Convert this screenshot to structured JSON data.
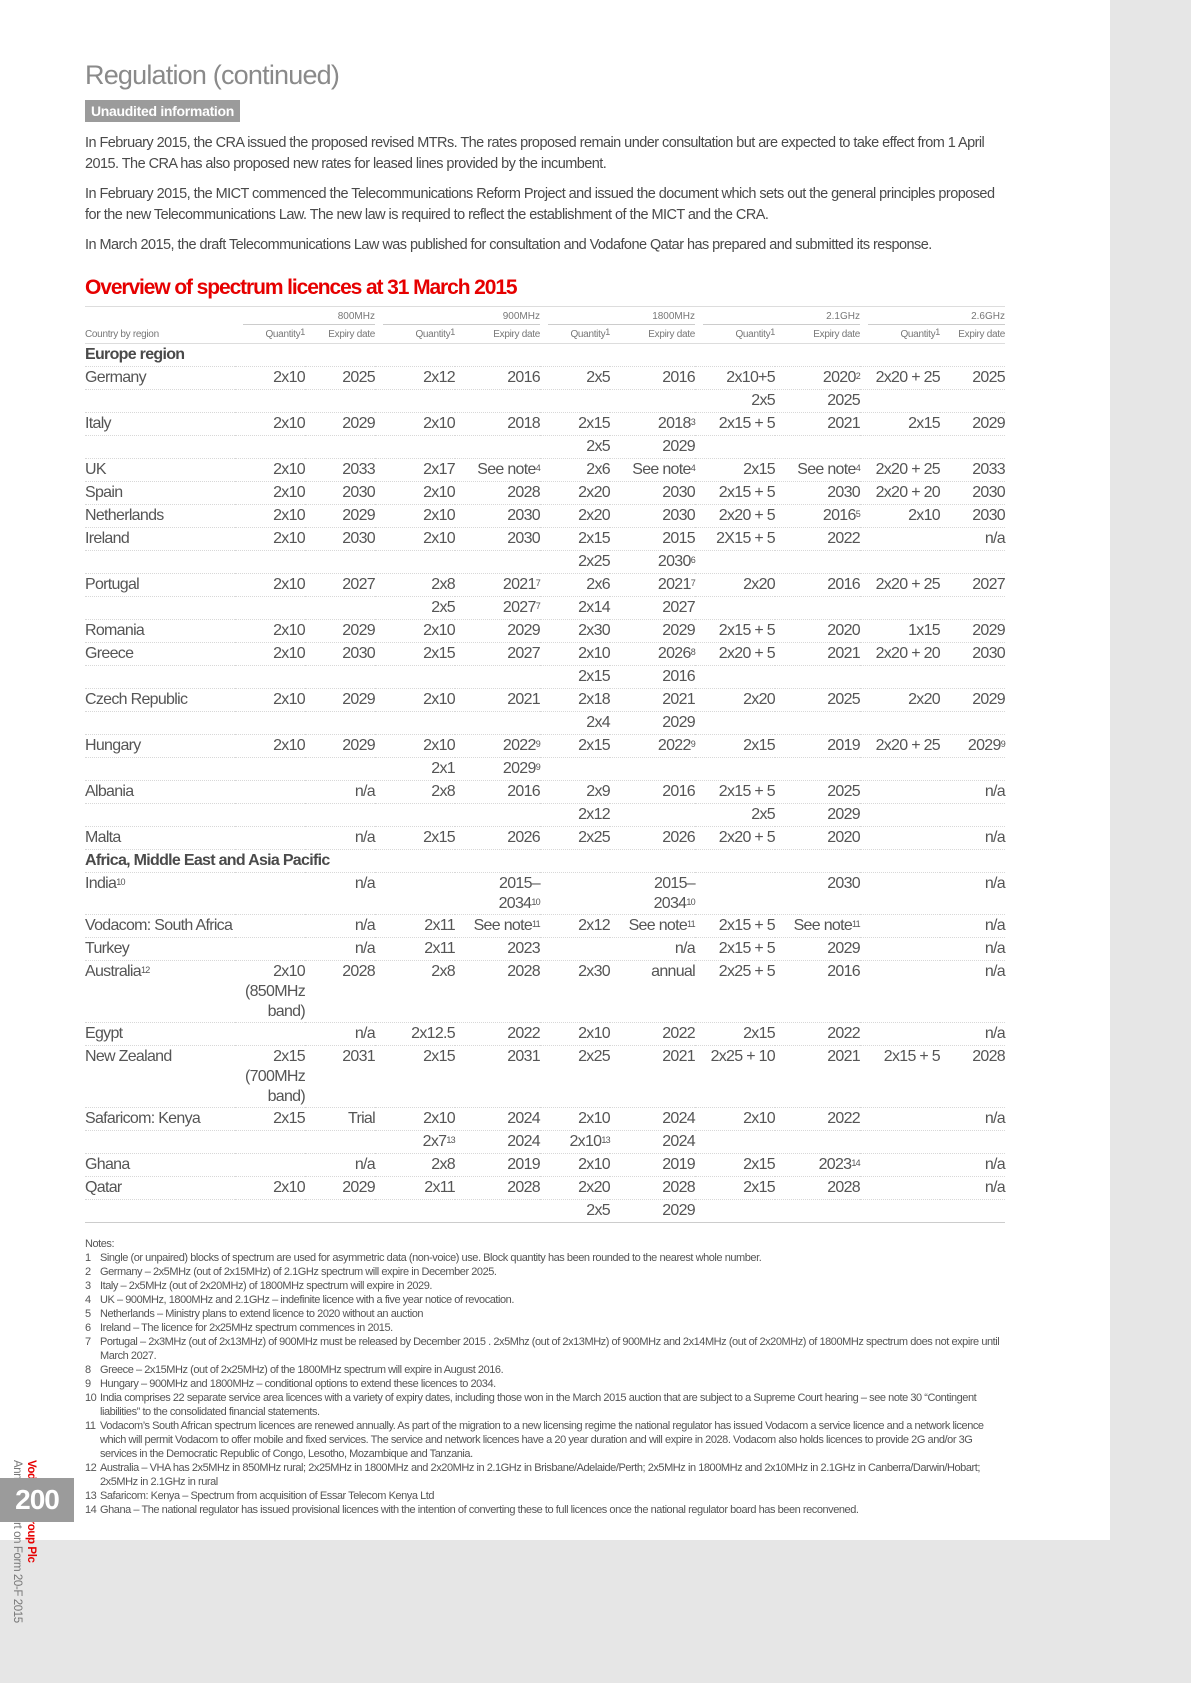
{
  "header": {
    "title": "Regulation (continued)",
    "badge": "Unaudited information"
  },
  "paragraphs": [
    "In February 2015, the CRA issued the proposed revised MTRs. The rates proposed remain under consultation but are expected to take effect from 1 April 2015. The CRA has also proposed new rates for leased lines provided by the incumbent.",
    "In February 2015, the MICT commenced the Telecommunications Reform Project and issued the document which sets out the general principles proposed for the new Telecommunications Law. The new law is required to reflect the establishment of the MICT and the CRA.",
    "In March 2015, the draft Telecommunications Law was published for consultation and Vodafone Qatar has prepared and submitted its response."
  ],
  "section_title": "Overview of spectrum licences at 31 March 2015",
  "table": {
    "bands": [
      "800MHz",
      "900MHz",
      "1800MHz",
      "2.1GHz",
      "2.6GHz"
    ],
    "country_header": "Country by region",
    "quantity_header": "Quantity",
    "quantity_sup": "1",
    "expiry_header": "Expiry date",
    "sections": [
      {
        "region": "Europe region",
        "rows": [
          [
            "Germany",
            "2x10",
            "2025",
            "2x12",
            "2016",
            "2x5",
            "2016",
            "2x10+5",
            [
              "2020",
              "2"
            ],
            "2x20 + 25",
            "2025"
          ],
          [
            "",
            "",
            "",
            "",
            "",
            "",
            "",
            "2x5",
            "2025",
            "",
            ""
          ],
          [
            "Italy",
            "2x10",
            "2029",
            "2x10",
            "2018",
            "2x15",
            [
              "2018",
              "3"
            ],
            "2x15 + 5",
            "2021",
            "2x15",
            "2029"
          ],
          [
            "",
            "",
            "",
            "",
            "",
            "2x5",
            "2029",
            "",
            "",
            "",
            ""
          ],
          [
            "UK",
            "2x10",
            "2033",
            "2x17",
            [
              "See note",
              "4"
            ],
            "2x6",
            [
              "See note",
              "4"
            ],
            "2x15",
            [
              "See note",
              "4"
            ],
            "2x20 + 25",
            "2033"
          ],
          [
            "Spain",
            "2x10",
            "2030",
            "2x10",
            "2028",
            "2x20",
            "2030",
            "2x15 + 5",
            "2030",
            "2x20 + 20",
            "2030"
          ],
          [
            "Netherlands",
            "2x10",
            "2029",
            "2x10",
            "2030",
            "2x20",
            "2030",
            "2x20 + 5",
            [
              "2016",
              "5"
            ],
            "2x10",
            "2030"
          ],
          [
            "Ireland",
            "2x10",
            "2030",
            "2x10",
            "2030",
            "2x15",
            "2015",
            "2X15 + 5",
            "2022",
            "",
            "n/a"
          ],
          [
            "",
            "",
            "",
            "",
            "",
            "2x25",
            [
              "2030",
              "6"
            ],
            "",
            "",
            "",
            ""
          ],
          [
            "Portugal",
            "2x10",
            "2027",
            "2x8",
            [
              "2021",
              "7"
            ],
            "2x6",
            [
              "2021",
              "7"
            ],
            "2x20",
            "2016",
            "2x20 + 25",
            "2027"
          ],
          [
            "",
            "",
            "",
            "2x5",
            [
              "2027",
              "7"
            ],
            "2x14",
            "2027",
            "",
            "",
            "",
            ""
          ],
          [
            "Romania",
            "2x10",
            "2029",
            "2x10",
            "2029",
            "2x30",
            "2029",
            "2x15 + 5",
            "2020",
            "1x15",
            "2029"
          ],
          [
            "Greece",
            "2x10",
            "2030",
            "2x15",
            "2027",
            "2x10",
            [
              "2026",
              "8"
            ],
            "2x20 + 5",
            "2021",
            "2x20 + 20",
            "2030"
          ],
          [
            "",
            "",
            "",
            "",
            "",
            "2x15",
            "2016",
            "",
            "",
            "",
            ""
          ],
          [
            "Czech Republic",
            "2x10",
            "2029",
            "2x10",
            "2021",
            "2x18",
            "2021",
            "2x20",
            "2025",
            "2x20",
            "2029"
          ],
          [
            "",
            "",
            "",
            "",
            "",
            "2x4",
            "2029",
            "",
            "",
            "",
            ""
          ],
          [
            "Hungary",
            "2x10",
            "2029",
            "2x10",
            [
              "2022",
              "9"
            ],
            "2x15",
            [
              "2022",
              "9"
            ],
            "2x15",
            "2019",
            "2x20 + 25",
            [
              "2029",
              "9"
            ]
          ],
          [
            "",
            "",
            "",
            "2x1",
            [
              "2029",
              "9"
            ],
            "",
            "",
            "",
            "",
            "",
            ""
          ],
          [
            "Albania",
            "",
            "n/a",
            "2x8",
            "2016",
            "2x9",
            "2016",
            "2x15 + 5",
            "2025",
            "",
            "n/a"
          ],
          [
            "",
            "",
            "",
            "",
            "",
            "2x12",
            "",
            "2x5",
            "2029",
            "",
            ""
          ],
          [
            "Malta",
            "",
            "n/a",
            "2x15",
            "2026",
            "2x25",
            "2026",
            "2x20 + 5",
            "2020",
            "",
            "n/a"
          ]
        ]
      },
      {
        "region": "Africa, Middle East and Asia Pacific",
        "rows": [
          [
            [
              "India",
              "10"
            ],
            "",
            "n/a",
            "",
            [
              "2015–2034",
              "10"
            ],
            "",
            [
              "2015–2034",
              "10"
            ],
            "",
            "2030",
            "",
            "n/a"
          ],
          [
            "Vodacom: South Africa",
            "",
            "n/a",
            "2x11",
            [
              "See note",
              "11"
            ],
            "2x12",
            [
              "See note",
              "11"
            ],
            "2x15 + 5",
            [
              "See note",
              "11"
            ],
            "",
            "n/a"
          ],
          [
            "Turkey",
            "",
            "n/a",
            "2x11",
            "2023",
            "",
            "n/a",
            "2x15 + 5",
            "2029",
            "",
            "n/a"
          ],
          [
            [
              "Australia",
              "12"
            ],
            "2x10 (850MHz band)",
            "2028",
            "2x8",
            "2028",
            "2x30",
            "annual",
            "2x25 + 5",
            "2016",
            "",
            "n/a"
          ],
          [
            "Egypt",
            "",
            "n/a",
            "2x12.5",
            "2022",
            "2x10",
            "2022",
            "2x15",
            "2022",
            "",
            "n/a"
          ],
          [
            "New Zealand",
            "2x15 (700MHz band)",
            "2031",
            "2x15",
            "2031",
            "2x25",
            "2021",
            "2x25 + 10",
            "2021",
            "2x15 + 5",
            "2028"
          ],
          [
            "Safaricom: Kenya",
            "2x15",
            "Trial",
            "2x10",
            "2024",
            "2x10",
            "2024",
            "2x10",
            "2022",
            "",
            "n/a"
          ],
          [
            "",
            "",
            "",
            [
              "2x7",
              "13"
            ],
            "2024",
            [
              "2x10",
              "13"
            ],
            "2024",
            "",
            "",
            "",
            ""
          ],
          [
            "Ghana",
            "",
            "n/a",
            "2x8",
            "2019",
            "2x10",
            "2019",
            "2x15",
            [
              "2023",
              "14"
            ],
            "",
            "n/a"
          ],
          [
            "Qatar",
            "2x10",
            "2029",
            "2x11",
            "2028",
            "2x20",
            "2028",
            "2x15",
            "2028",
            "",
            "n/a"
          ],
          [
            "",
            "",
            "",
            "",
            "",
            "2x5",
            "2029",
            "",
            "",
            "",
            ""
          ]
        ]
      }
    ]
  },
  "notes": {
    "title": "Notes:",
    "items": [
      [
        "1",
        "Single (or unpaired) blocks of spectrum are used for asymmetric data (non-voice) use. Block quantity has been rounded to the nearest whole number."
      ],
      [
        "2",
        "Germany – 2x5MHz (out of 2x15MHz) of 2.1GHz spectrum will expire in December 2025."
      ],
      [
        "3",
        "Italy – 2x5MHz (out of 2x20MHz) of 1800MHz spectrum will expire in 2029."
      ],
      [
        "4",
        "UK – 900MHz, 1800MHz and 2.1GHz – indefinite licence with a five year notice of revocation."
      ],
      [
        "5",
        "Netherlands – Ministry plans to extend licence to 2020 without an auction"
      ],
      [
        "6",
        "Ireland – The licence for 2x25MHz spectrum commences in 2015."
      ],
      [
        "7",
        "Portugal – 2x3MHz (out of 2x13MHz) of 900MHz must be released by December 2015 . 2x5Mhz (out of 2x13MHz) of 900MHz and 2x14MHz (out of 2x20MHz) of 1800MHz spectrum does not expire until March 2027."
      ],
      [
        "8",
        "Greece – 2x15MHz (out of 2x25MHz) of the 1800MHz spectrum will expire in August 2016."
      ],
      [
        "9",
        "Hungary – 900MHz and 1800MHz – conditional options to extend these licences to 2034."
      ],
      [
        "10",
        "India comprises 22 separate service area licences with a variety of expiry dates, including those won in the March 2015 auction that are subject to a Supreme Court hearing – see note 30 “Contingent liabilities” to the consolidated financial statements."
      ],
      [
        "11",
        "Vodacom’s South African spectrum licences are renewed annually. As part of the migration to a new licensing regime the national regulator has issued Vodacom a service licence and a network licence which will permit Vodacom to offer mobile and fixed services. The service and network licences have a 20 year duration and will expire in 2028. Vodacom also holds licences to provide 2G and/or 3G services in the Democratic Republic of Congo, Lesotho, Mozambique and Tanzania."
      ],
      [
        "12",
        "Australia – VHA has 2x5MHz in 850MHz rural; 2x25MHz in 1800MHz and 2x20MHz in 2.1GHz in Brisbane/Adelaide/Perth; 2x5MHz in 1800MHz and 2x10MHz in 2.1GHz in Canberra/Darwin/Hobart; 2x5MHz in 2.1GHz in rural"
      ],
      [
        "13",
        "Safaricom: Kenya – Spectrum from acquisition of Essar Telecom Kenya Ltd"
      ],
      [
        "14",
        "Ghana – The national regulator has issued provisional licences with the intention of converting these to full licences once the national regulator board has been reconvened."
      ]
    ]
  },
  "footer": {
    "brand": "Vodafone Group Plc",
    "report": "Annual Report on Form 20-F 2015",
    "page_number": "200"
  },
  "colors": {
    "accent": "#e60000",
    "badge": "#9b9b9b"
  }
}
